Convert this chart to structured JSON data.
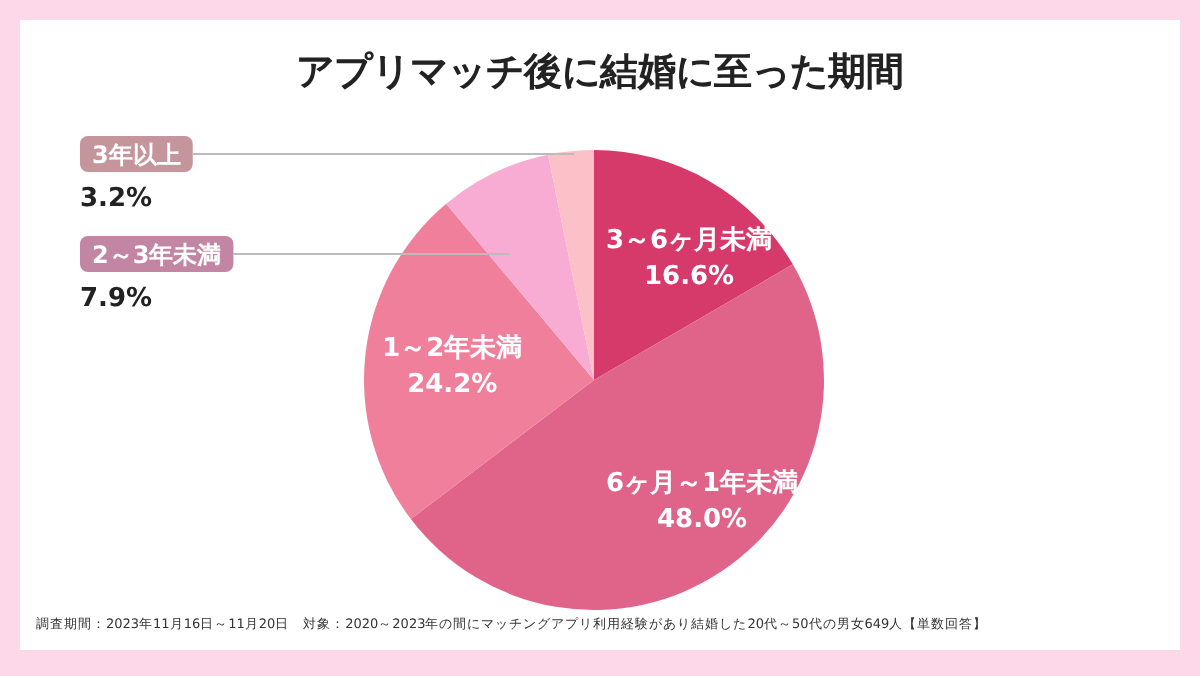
{
  "chart_data": {
    "type": "pie",
    "title": "アプリマッチ後に結婚に至った期間",
    "categories": [
      "3～6ヶ月未満",
      "6ヶ月～1年未満",
      "1～2年未満",
      "2～3年未満",
      "3年以上"
    ],
    "values": [
      16.6,
      48.0,
      24.2,
      7.9,
      3.2
    ],
    "colors": [
      "#d63a6a",
      "#e0648a",
      "#ef7f9b",
      "#f9acd3",
      "#fcc0c8"
    ],
    "value_labels": [
      "16.6%",
      "48.0%",
      "24.2%",
      "7.9%",
      "3.2%"
    ],
    "annotations": [
      "調査期間：2023年11月16日～11月20日　対象：2020～2023年の間にマッチングアプリ利用経験があり結婚した20代～50代の男女649人【単数回答】"
    ]
  }
}
